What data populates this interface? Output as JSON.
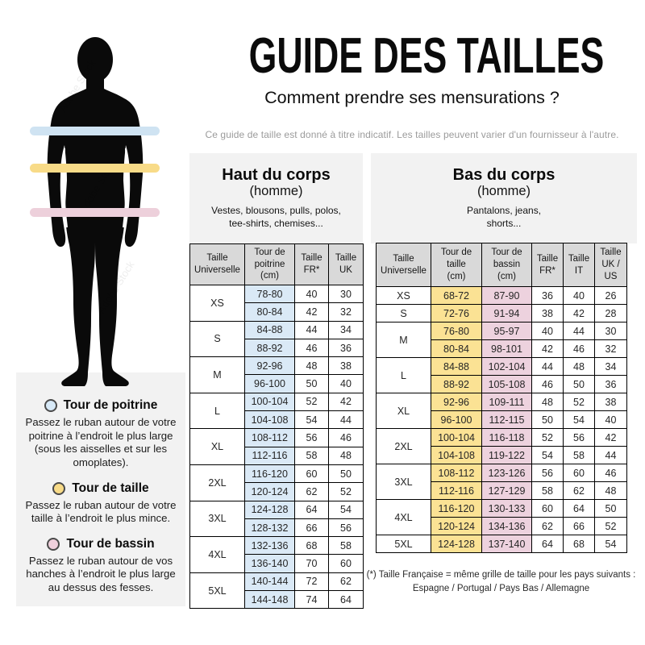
{
  "header": {
    "title": "GUIDE DES TAILLES",
    "subtitle": "Comment prendre ses mensurations ?",
    "disclaimer": "Ce guide de taille est donné à titre indicatif. Les tailles peuvent varier d'un fournisseur à l'autre."
  },
  "figure": {
    "watermark": "Adobe Stock",
    "bands": {
      "chest": "#CFE3F2",
      "waist": "#F8DB88",
      "hips": "#EDD0DB"
    }
  },
  "legend": {
    "items": [
      {
        "title": "Tour de poitrine",
        "color": "#D7E9F7",
        "description": "Passez le ruban autour de votre poitrine à l’endroit le plus large (sous les aisselles et sur les omoplates)."
      },
      {
        "title": "Tour de taille",
        "color": "#F8DB88",
        "description": "Passez le ruban autour de votre taille à l’endroit le plus mince."
      },
      {
        "title": "Tour de bassin",
        "color": "#EFD0DC",
        "description": "Passez le ruban autour de vos hanches à l’endroit le plus large au dessus des fesses."
      }
    ]
  },
  "tables": [
    {
      "title": "Haut du corps",
      "subtitle": "(homme)",
      "description": "Vestes, blousons, pulls, polos,\ntee-shirts, chemises...",
      "columns": [
        "Taille\nUniverselle",
        "Tour de\npoitrine\n(cm)",
        "Taille\nFR*",
        "Taille\nUK"
      ],
      "col_colors": [
        "",
        "#DAE9F6",
        "",
        ""
      ],
      "groups": [
        {
          "size": "XS",
          "rows": [
            [
              "78-80",
              "40",
              "30"
            ],
            [
              "80-84",
              "42",
              "32"
            ]
          ]
        },
        {
          "size": "S",
          "rows": [
            [
              "84-88",
              "44",
              "34"
            ],
            [
              "88-92",
              "46",
              "36"
            ]
          ]
        },
        {
          "size": "M",
          "rows": [
            [
              "92-96",
              "48",
              "38"
            ],
            [
              "96-100",
              "50",
              "40"
            ]
          ]
        },
        {
          "size": "L",
          "rows": [
            [
              "100-104",
              "52",
              "42"
            ],
            [
              "104-108",
              "54",
              "44"
            ]
          ]
        },
        {
          "size": "XL",
          "rows": [
            [
              "108-112",
              "56",
              "46"
            ],
            [
              "112-116",
              "58",
              "48"
            ]
          ]
        },
        {
          "size": "2XL",
          "rows": [
            [
              "116-120",
              "60",
              "50"
            ],
            [
              "120-124",
              "62",
              "52"
            ]
          ]
        },
        {
          "size": "3XL",
          "rows": [
            [
              "124-128",
              "64",
              "54"
            ],
            [
              "128-132",
              "66",
              "56"
            ]
          ]
        },
        {
          "size": "4XL",
          "rows": [
            [
              "132-136",
              "68",
              "58"
            ],
            [
              "136-140",
              "70",
              "60"
            ]
          ]
        },
        {
          "size": "5XL",
          "rows": [
            [
              "140-144",
              "72",
              "62"
            ],
            [
              "144-148",
              "74",
              "64"
            ]
          ]
        }
      ]
    },
    {
      "title": "Bas du corps",
      "subtitle": "(homme)",
      "description": "Pantalons, jeans,\nshorts...",
      "columns": [
        "Taille\nUniverselle",
        "Tour de\ntaille\n(cm)",
        "Tour de\nbassin\n(cm)",
        "Taille\nFR*",
        "Taille\nIT",
        "Taille\nUK /\nUS"
      ],
      "col_colors": [
        "",
        "#FBE294",
        "#EDD2DE",
        "",
        "",
        ""
      ],
      "groups": [
        {
          "size": "XS",
          "rows": [
            [
              "68-72",
              "87-90",
              "36",
              "40",
              "26"
            ]
          ]
        },
        {
          "size": "S",
          "rows": [
            [
              "72-76",
              "91-94",
              "38",
              "42",
              "28"
            ]
          ]
        },
        {
          "size": "M",
          "rows": [
            [
              "76-80",
              "95-97",
              "40",
              "44",
              "30"
            ],
            [
              "80-84",
              "98-101",
              "42",
              "46",
              "32"
            ]
          ]
        },
        {
          "size": "L",
          "rows": [
            [
              "84-88",
              "102-104",
              "44",
              "48",
              "34"
            ],
            [
              "88-92",
              "105-108",
              "46",
              "50",
              "36"
            ]
          ]
        },
        {
          "size": "XL",
          "rows": [
            [
              "92-96",
              "109-111",
              "48",
              "52",
              "38"
            ],
            [
              "96-100",
              "112-115",
              "50",
              "54",
              "40"
            ]
          ]
        },
        {
          "size": "2XL",
          "rows": [
            [
              "100-104",
              "116-118",
              "52",
              "56",
              "42"
            ],
            [
              "104-108",
              "119-122",
              "54",
              "58",
              "44"
            ]
          ]
        },
        {
          "size": "3XL",
          "rows": [
            [
              "108-112",
              "123-126",
              "56",
              "60",
              "46"
            ],
            [
              "112-116",
              "127-129",
              "58",
              "62",
              "48"
            ]
          ]
        },
        {
          "size": "4XL",
          "rows": [
            [
              "116-120",
              "130-133",
              "60",
              "64",
              "50"
            ],
            [
              "120-124",
              "134-136",
              "62",
              "66",
              "52"
            ]
          ]
        },
        {
          "size": "5XL",
          "rows": [
            [
              "124-128",
              "137-140",
              "64",
              "68",
              "54"
            ]
          ]
        }
      ]
    }
  ],
  "footnote": {
    "line1": "(*) Taille Française = même grille de taille pour les pays suivants :",
    "line2": "Espagne / Portugal / Pays Bas / Allemagne"
  }
}
